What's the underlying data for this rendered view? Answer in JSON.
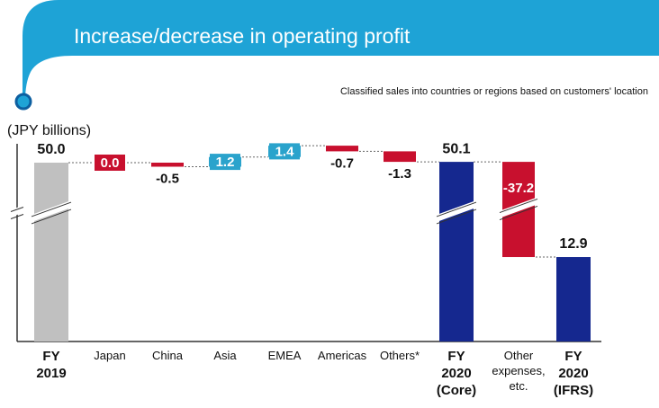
{
  "chart_data": {
    "type": "waterfall",
    "title": "Increase/decrease in operating profit",
    "subtitle": "Classified sales into countries or regions based on customers' location",
    "y_label": "(JPY billions)",
    "categories": [
      "FY 2019",
      "Japan",
      "China",
      "Asia",
      "EMEA",
      "Americas",
      "Others*",
      "FY 2020 (Core)",
      "Other expenses, etc.",
      "FY 2020 (IFRS)"
    ],
    "values": [
      50.0,
      0.0,
      -0.5,
      1.2,
      1.4,
      -0.7,
      -1.3,
      50.1,
      -37.2,
      12.9
    ],
    "value_labels": [
      "50.0",
      "0.0",
      "-0.5",
      "1.2",
      "1.4",
      "-0.7",
      "-1.3",
      "50.1",
      "-37.2",
      "12.9"
    ],
    "colors": [
      "#c0c0c0",
      "#c8102e",
      "#c8102e",
      "#2aa3cc",
      "#2aa3cc",
      "#c8102e",
      "#c8102e",
      "#15288f",
      "#c8102e",
      "#15288f"
    ]
  }
}
